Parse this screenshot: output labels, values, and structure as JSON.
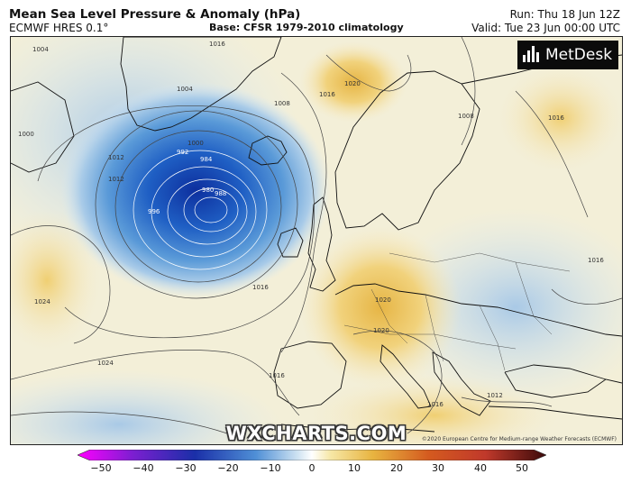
{
  "header": {
    "title": "Mean Sea Level Pressure & Anomaly (hPa)",
    "model": "ECMWF HRES 0.1°",
    "base": "Base: CFSR 1979-2010 climatology",
    "run": "Run: Thu 18 Jun 12Z",
    "valid": "Valid: Tue 23 Jun 00:00 UTC"
  },
  "logo": {
    "text": "MetDesk"
  },
  "watermark": "WXCHARTS.COM",
  "copyright": "©2020 European Centre for Medium-range Weather Forecasts (ECMWF)",
  "isobar_labels": [
    "1000",
    "1004",
    "1008",
    "1012",
    "1016",
    "1016",
    "1016",
    "1016",
    "1020",
    "1020",
    "1024",
    "1024",
    "1016",
    "1008",
    "1004",
    "1000",
    "996",
    "992",
    "988",
    "984",
    "980",
    "1016",
    "1020",
    "1012",
    "1012",
    "1016"
  ],
  "colorbar": {
    "ticks": [
      "−50",
      "−40",
      "−30",
      "−20",
      "−10",
      "0",
      "10",
      "20",
      "30",
      "40",
      "50"
    ],
    "colors": {
      "min": "#ff00ff",
      "deep_negative": "#1a2fa8",
      "negative": "#4f8fd6",
      "light_negative": "#cfe3f2",
      "zero": "#ffffff",
      "light_positive": "#f6e7a6",
      "positive": "#e8b440",
      "high_positive": "#c0392b",
      "max": "#3b0a0a"
    }
  }
}
